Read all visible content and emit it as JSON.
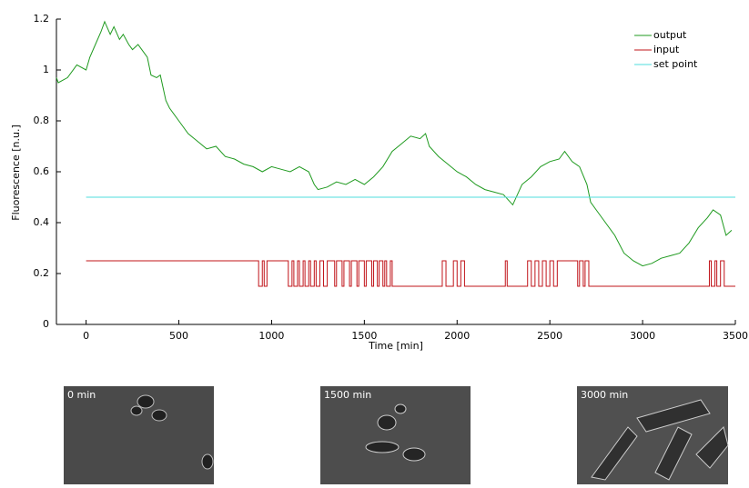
{
  "chart_data": {
    "type": "line",
    "xlabel": "Time [min]",
    "ylabel": "Fluorescence [n.u.]",
    "xlim": [
      -160,
      3500
    ],
    "ylim": [
      0,
      1.2
    ],
    "xticks": [
      0,
      500,
      1000,
      1500,
      2000,
      2500,
      3000,
      3500
    ],
    "yticks": [
      0,
      0.2,
      0.4,
      0.6,
      0.8,
      1,
      1.2
    ],
    "legend": "upper right",
    "series": [
      {
        "name": "output",
        "color": "#1f9a1f",
        "x": [
          -160,
          -150,
          -100,
          -50,
          0,
          20,
          50,
          80,
          100,
          130,
          150,
          180,
          200,
          230,
          250,
          280,
          300,
          330,
          350,
          380,
          400,
          430,
          450,
          500,
          550,
          600,
          650,
          700,
          750,
          800,
          850,
          900,
          950,
          1000,
          1050,
          1100,
          1150,
          1200,
          1230,
          1250,
          1300,
          1350,
          1400,
          1450,
          1500,
          1550,
          1600,
          1650,
          1700,
          1750,
          1800,
          1830,
          1850,
          1900,
          1950,
          2000,
          2050,
          2100,
          2150,
          2200,
          2250,
          2300,
          2350,
          2400,
          2450,
          2500,
          2550,
          2580,
          2620,
          2660,
          2700,
          2720,
          2750,
          2800,
          2850,
          2900,
          2950,
          3000,
          3050,
          3100,
          3150,
          3200,
          3250,
          3300,
          3350,
          3380,
          3420,
          3450,
          3480
        ],
        "values": [
          0.97,
          0.95,
          0.97,
          1.02,
          1.0,
          1.05,
          1.1,
          1.15,
          1.19,
          1.14,
          1.17,
          1.12,
          1.14,
          1.1,
          1.08,
          1.1,
          1.08,
          1.05,
          0.98,
          0.97,
          0.98,
          0.88,
          0.85,
          0.8,
          0.75,
          0.72,
          0.69,
          0.7,
          0.66,
          0.65,
          0.63,
          0.62,
          0.6,
          0.62,
          0.61,
          0.6,
          0.62,
          0.6,
          0.55,
          0.53,
          0.54,
          0.56,
          0.55,
          0.57,
          0.55,
          0.58,
          0.62,
          0.68,
          0.71,
          0.74,
          0.73,
          0.75,
          0.7,
          0.66,
          0.63,
          0.6,
          0.58,
          0.55,
          0.53,
          0.52,
          0.51,
          0.47,
          0.55,
          0.58,
          0.62,
          0.64,
          0.65,
          0.68,
          0.64,
          0.62,
          0.55,
          0.48,
          0.45,
          0.4,
          0.35,
          0.28,
          0.25,
          0.23,
          0.24,
          0.26,
          0.27,
          0.28,
          0.32,
          0.38,
          0.42,
          0.45,
          0.43,
          0.35,
          0.37
        ]
      },
      {
        "name": "input",
        "color": "#c0141a",
        "step": true,
        "x": [
          0,
          930,
          950,
          960,
          975,
          1090,
          1110,
          1120,
          1140,
          1150,
          1170,
          1180,
          1200,
          1210,
          1230,
          1240,
          1260,
          1280,
          1300,
          1340,
          1350,
          1380,
          1390,
          1420,
          1430,
          1460,
          1470,
          1500,
          1510,
          1540,
          1550,
          1570,
          1580,
          1600,
          1610,
          1620,
          1640,
          1650,
          1920,
          1940,
          1980,
          2000,
          2020,
          2040,
          2260,
          2270,
          2380,
          2400,
          2420,
          2440,
          2460,
          2480,
          2500,
          2520,
          2540,
          2650,
          2660,
          2680,
          2690,
          2710,
          3360,
          3370,
          3390,
          3400,
          3420,
          3440,
          3500
        ],
        "values": [
          0.25,
          0.15,
          0.25,
          0.15,
          0.25,
          0.15,
          0.25,
          0.15,
          0.25,
          0.15,
          0.25,
          0.15,
          0.25,
          0.15,
          0.25,
          0.15,
          0.25,
          0.15,
          0.25,
          0.15,
          0.25,
          0.15,
          0.25,
          0.15,
          0.25,
          0.15,
          0.25,
          0.15,
          0.25,
          0.15,
          0.25,
          0.15,
          0.25,
          0.15,
          0.25,
          0.15,
          0.25,
          0.15,
          0.25,
          0.15,
          0.25,
          0.15,
          0.25,
          0.15,
          0.25,
          0.15,
          0.25,
          0.15,
          0.25,
          0.15,
          0.25,
          0.15,
          0.25,
          0.15,
          0.25,
          0.15,
          0.25,
          0.15,
          0.25,
          0.15,
          0.25,
          0.15,
          0.25,
          0.15,
          0.25,
          0.15,
          0.15
        ]
      },
      {
        "name": "set point",
        "color": "#4fdede",
        "x": [
          0,
          3500
        ],
        "values": [
          0.5,
          0.5
        ]
      }
    ]
  },
  "panels": [
    {
      "label": "0 min"
    },
    {
      "label": "1500 min"
    },
    {
      "label": "3000 min"
    }
  ]
}
